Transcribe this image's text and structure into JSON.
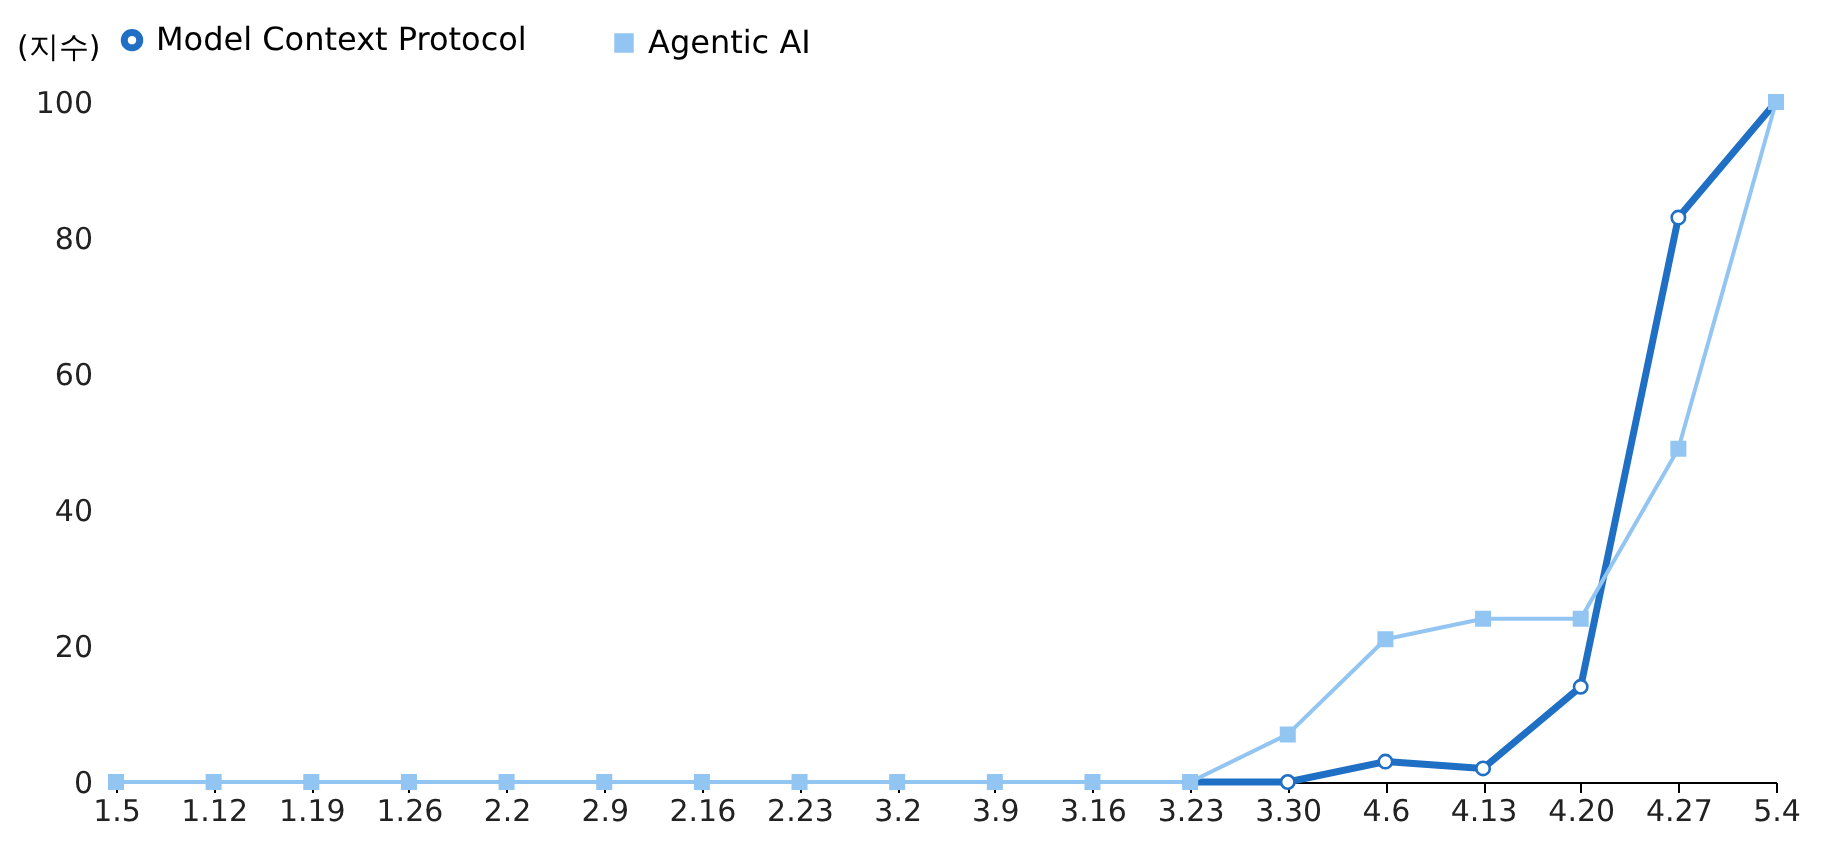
{
  "chart_data": {
    "type": "line",
    "ylabel": "(지수)",
    "categories": [
      "1.5",
      "1.12",
      "1.19",
      "1.26",
      "2.2",
      "2.9",
      "2.16",
      "2.23",
      "3.2",
      "3.9",
      "3.16",
      "3.23",
      "3.30",
      "4.6",
      "4.13",
      "4.20",
      "4.27",
      "5.4"
    ],
    "series": [
      {
        "name": "Model Context Protocol",
        "color": "#1f6fc5",
        "marker": "circle",
        "values": [
          null,
          null,
          null,
          null,
          null,
          null,
          null,
          null,
          null,
          null,
          null,
          0,
          0,
          3,
          2,
          14,
          83,
          100
        ]
      },
      {
        "name": "Agentic AI",
        "color": "#92c5f2",
        "marker": "square",
        "values": [
          0,
          0,
          0,
          0,
          0,
          0,
          0,
          0,
          0,
          0,
          0,
          0,
          7,
          21,
          24,
          24,
          49,
          100
        ]
      }
    ],
    "ylim": [
      0,
      100
    ],
    "yticks": [
      0,
      20,
      40,
      60,
      80,
      100
    ],
    "grid": false,
    "legend": "top"
  }
}
